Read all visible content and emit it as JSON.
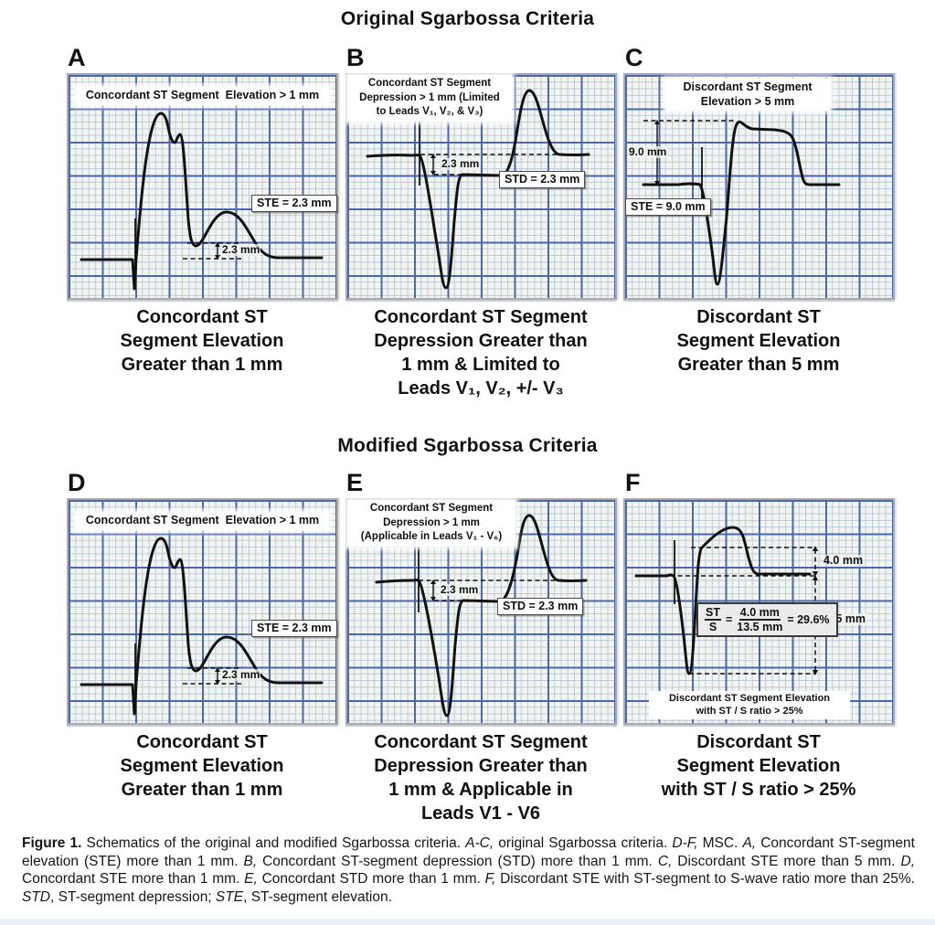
{
  "titles": {
    "original": "Original Sgarbossa Criteria",
    "modified": "Modified Sgarbossa Criteria"
  },
  "panels": {
    "A": {
      "letter": "A",
      "criterion_label": "Concordant ST Segment  Elevation > 1 mm",
      "measurement_box": "STE = 2.3 mm",
      "measurement_annotation": "2.3 mm",
      "caption": [
        "Concordant ST",
        "Segment Elevation",
        "Greater than 1 mm"
      ]
    },
    "B": {
      "letter": "B",
      "criterion_label": [
        "Concordant ST Segment",
        "Depression > 1 mm (Limited",
        "to Leads V₁, V₂, & V₃)"
      ],
      "measurement_box": "STD = 2.3 mm",
      "measurement_annotation": "2.3 mm",
      "caption": [
        "Concordant ST Segment",
        "Depression Greater than",
        "1 mm & Limited to",
        "Leads V₁, V₂, +/- V₃"
      ]
    },
    "C": {
      "letter": "C",
      "criterion_label": [
        "Discordant ST Segment",
        "Elevation > 5 mm"
      ],
      "measurement_box": "STE = 9.0 mm",
      "measurement_annotation": "9.0 mm",
      "caption": [
        "Discordant ST",
        "Segment Elevation",
        "Greater than 5 mm"
      ]
    },
    "D": {
      "letter": "D",
      "criterion_label": "Concordant ST Segment  Elevation > 1 mm",
      "measurement_box": "STE = 2.3 mm",
      "measurement_annotation": "2.3 mm",
      "caption": [
        "Concordant ST",
        "Segment Elevation",
        "Greater than 1 mm"
      ]
    },
    "E": {
      "letter": "E",
      "criterion_label": [
        "Concordant ST Segment",
        "Depression > 1 mm",
        "(Applicable in Leads V₁ - V₆)"
      ],
      "measurement_box": "STD = 2.3 mm",
      "measurement_annotation": "2.3 mm",
      "caption": [
        "Concordant ST Segment",
        "Depression Greater than",
        "1 mm & Applicable in",
        "Leads V1 - V6"
      ]
    },
    "F": {
      "letter": "F",
      "st_elevation_label": "4.0 mm",
      "s_wave_label": "13.5 mm",
      "formula": {
        "st": "ST",
        "s": "S",
        "eq": "=",
        "numerator": "4.0 mm",
        "denominator": "13.5 mm",
        "result": "= 29.6%"
      },
      "criterion_label": [
        "Discordant ST Segment Elevation",
        "with ST / S ratio > 25%"
      ],
      "caption": [
        "Discordant ST",
        "Segment Elevation",
        "with ST / S ratio > 25%"
      ]
    }
  },
  "figure_caption": {
    "segments": [
      {
        "text": "Figure 1.",
        "style": "bold"
      },
      {
        "text": "  Schematics of the original and modified Sgarbossa criteria. ",
        "style": "normal"
      },
      {
        "text": "A-C,",
        "style": "italic"
      },
      {
        "text": " original Sgarbossa criteria. ",
        "style": "normal"
      },
      {
        "text": "D-F,",
        "style": "italic"
      },
      {
        "text": " MSC. ",
        "style": "normal"
      },
      {
        "text": "A,",
        "style": "italic"
      },
      {
        "text": " Concordant ST-segment elevation (STE) more than 1 mm. ",
        "style": "normal"
      },
      {
        "text": "B,",
        "style": "italic"
      },
      {
        "text": " Concordant ST-segment depression (STD) more than 1 mm. ",
        "style": "normal"
      },
      {
        "text": "C,",
        "style": "italic"
      },
      {
        "text": " Discordant STE more than 5 mm. ",
        "style": "normal"
      },
      {
        "text": "D,",
        "style": "italic"
      },
      {
        "text": " Concordant STE more than 1 mm. ",
        "style": "normal"
      },
      {
        "text": "E,",
        "style": "italic"
      },
      {
        "text": " Concordant STD more than 1 mm. ",
        "style": "normal"
      },
      {
        "text": "F,",
        "style": "italic"
      },
      {
        "text": " Discordant STE with ST-segment to S-wave ratio more than 25%. ",
        "style": "normal"
      },
      {
        "text": "STD",
        "style": "italic"
      },
      {
        "text": ", ST-segment depression; ",
        "style": "normal"
      },
      {
        "text": "STE",
        "style": "italic"
      },
      {
        "text": ", ST-segment elevation.",
        "style": "normal"
      }
    ]
  },
  "colors": {
    "grid_background": "#f3f6f0",
    "grid_minor_line": "#bcc8da",
    "grid_major_line": "#4a67b0",
    "trace": "#111111"
  }
}
